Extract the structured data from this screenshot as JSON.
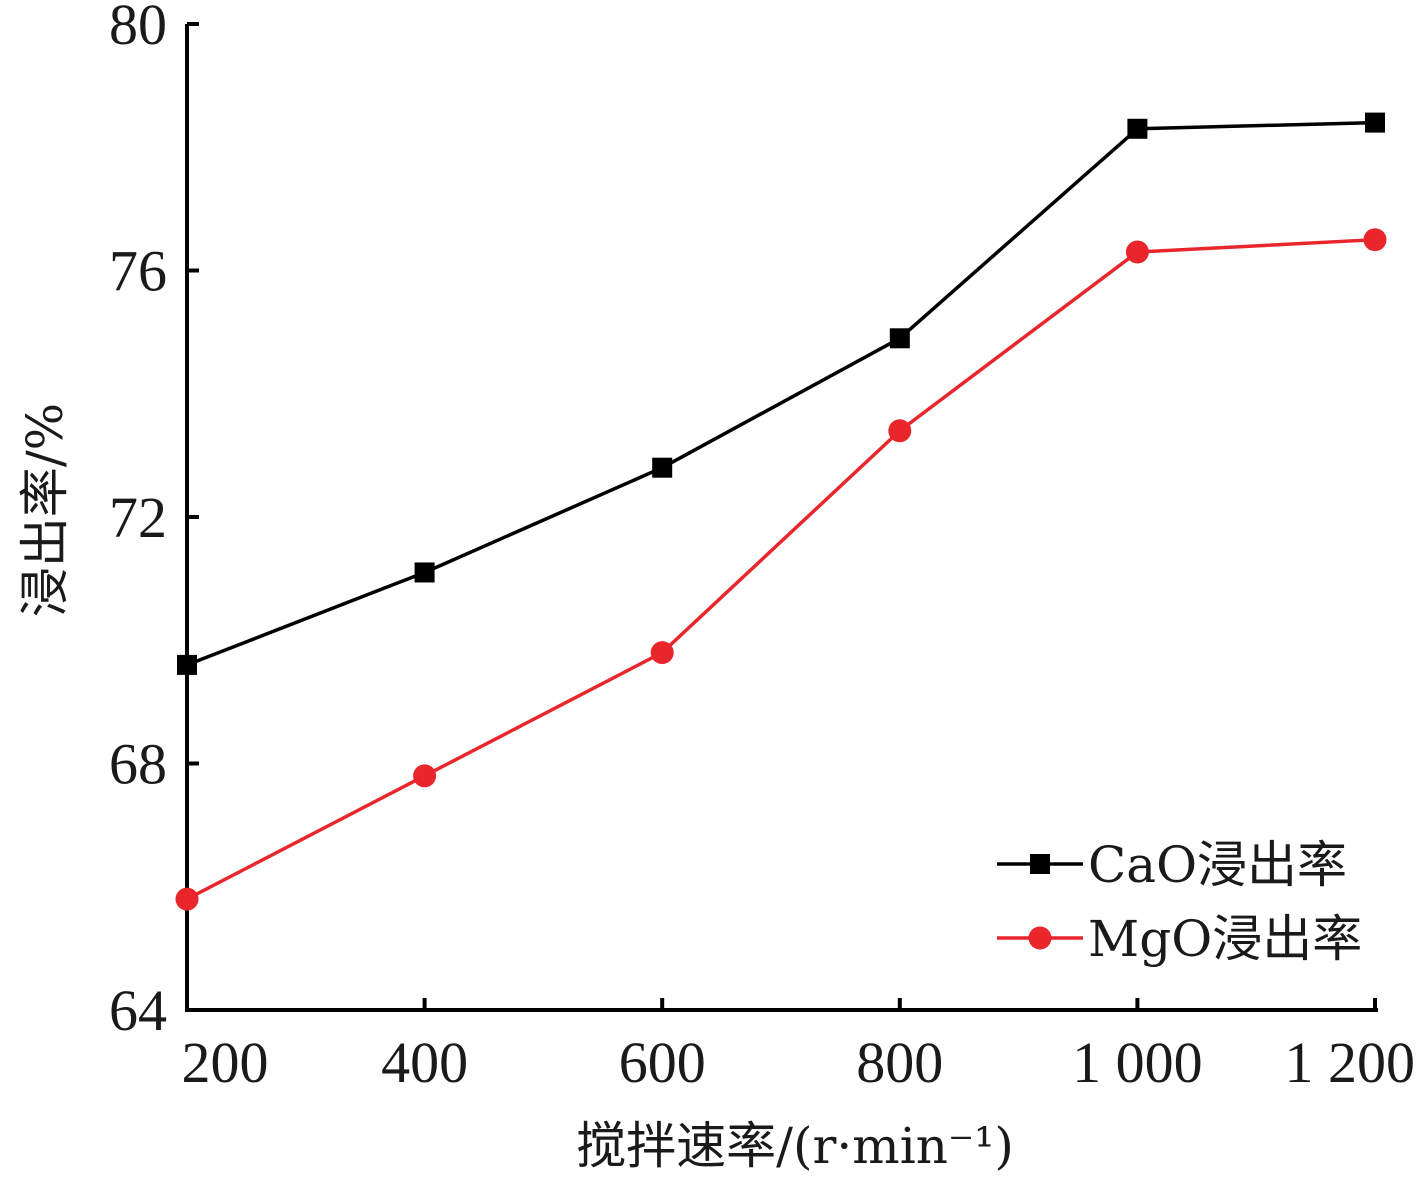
{
  "chart_data": {
    "type": "line",
    "title": "",
    "xlabel": "搅拌速率/(r·min⁻¹)",
    "ylabel": "浸出率/%",
    "x": [
      200,
      400,
      600,
      800,
      1000,
      1200
    ],
    "x_tick_labels": [
      "200",
      "400",
      "600",
      "800",
      "1 000",
      "1 200"
    ],
    "y_ticks": [
      64,
      68,
      72,
      76,
      80
    ],
    "y_tick_labels": [
      "64",
      "68",
      "72",
      "76",
      "80"
    ],
    "xlim": [
      200,
      1200
    ],
    "ylim": [
      64,
      80
    ],
    "grid": false,
    "legend_position": "bottom-right",
    "series": [
      {
        "name": "CaO浸出率",
        "color": "#000000",
        "marker": "square",
        "values": [
          69.6,
          71.1,
          72.8,
          74.9,
          78.3,
          78.4
        ]
      },
      {
        "name": "MgO浸出率",
        "color": "#e8262c",
        "marker": "circle",
        "values": [
          65.8,
          67.8,
          69.8,
          73.4,
          76.3,
          76.5
        ]
      }
    ]
  }
}
